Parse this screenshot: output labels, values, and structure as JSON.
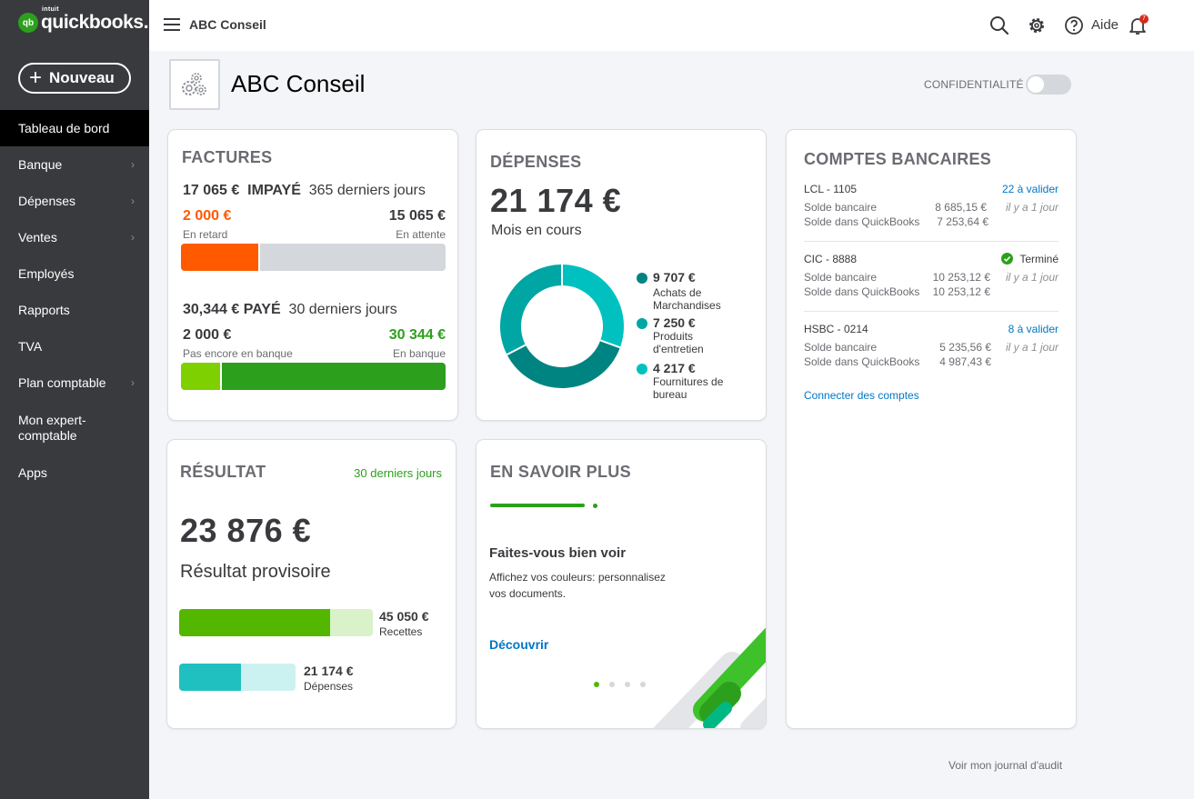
{
  "app": {
    "brand_badge": "qb",
    "brand_top": "intuit",
    "brand_name": "quickbooks."
  },
  "sidebar": {
    "new_button": "Nouveau",
    "items": [
      {
        "label": "Tableau de bord",
        "active": true
      },
      {
        "label": "Banque",
        "has_submenu": true
      },
      {
        "label": "Dépenses",
        "has_submenu": true
      },
      {
        "label": "Ventes",
        "has_submenu": true
      },
      {
        "label": "Employés"
      },
      {
        "label": "Rapports"
      },
      {
        "label": "TVA"
      },
      {
        "label": "Plan comptable",
        "has_submenu": true
      },
      {
        "label": "Mon expert-comptable"
      },
      {
        "label": "Apps"
      }
    ]
  },
  "topbar": {
    "company": "ABC Conseil",
    "help_label": "Aide",
    "notifications_count": "7"
  },
  "header": {
    "company_name": "ABC Conseil",
    "privacy_label": "CONFIDENTIALITÉ",
    "privacy_on": false
  },
  "factures": {
    "title": "FACTURES",
    "unpaid_amount": "17 065 €",
    "unpaid_label": "IMPAYÉ",
    "unpaid_period": "365 derniers jours",
    "overdue_amount": "2 000 €",
    "overdue_label": "En retard",
    "pending_amount": "15 065 €",
    "pending_label": "En attente",
    "paid_amount": "30,344 €",
    "paid_label": "PAYÉ",
    "paid_period": "30 derniers jours",
    "not_deposited_amount": "2 000 €",
    "not_deposited_label": "Pas encore en banque",
    "deposited_amount": "30 344 €",
    "deposited_label": "En banque"
  },
  "depenses": {
    "title": "DÉPENSES",
    "total": "21 174 €",
    "period": "Mois en cours",
    "legend": [
      {
        "value": "9 707 €",
        "label_lines": [
          "Achats de",
          "Marchandises"
        ],
        "color": "#008481"
      },
      {
        "value": "7 250 €",
        "label_lines": [
          "Produits",
          "d'entretien"
        ],
        "color": "#00a6a4"
      },
      {
        "value": "4 217 €",
        "label_lines": [
          "Fournitures de",
          "bureau"
        ],
        "color": "#00c1bf"
      }
    ]
  },
  "comptes": {
    "title": "COMPTES BANCAIRES",
    "accounts": [
      {
        "name": "LCL - 1105",
        "status": "22 à valider",
        "bank_label": "Solde bancaire",
        "bank_value": "8 685,15 €",
        "qb_label": "Solde dans QuickBooks",
        "qb_value": "7 253,64 €",
        "ago": "il y a 1 jour"
      },
      {
        "name": "CIC - 8888",
        "status": "Terminé",
        "bank_label": "Solde bancaire",
        "bank_value": "10 253,12 €",
        "qb_label": "Solde dans QuickBooks",
        "qb_value": "10 253,12 €",
        "ago": "il y a 1 jour"
      },
      {
        "name": "HSBC - 0214",
        "status": "8 à valider",
        "bank_label": "Solde bancaire",
        "bank_value": "5 235,56 €",
        "qb_label": "Solde dans QuickBooks",
        "qb_value": "4 987,43 €",
        "ago": "il y a 1 jour"
      }
    ],
    "connect_link": "Connecter des comptes"
  },
  "resultat": {
    "title": "RÉSULTAT",
    "period": "30 derniers jours",
    "amount": "23 876 €",
    "label": "Résultat provisoire",
    "income_value": "45 050 €",
    "income_label": "Recettes",
    "expense_value": "21 174 €",
    "expense_label": "Dépenses"
  },
  "en_savoir_plus": {
    "title": "EN SAVOIR PLUS",
    "heading": "Faites-vous bien voir",
    "body_lines": [
      "Affichez vos couleurs: personnalisez",
      "vos documents."
    ],
    "cta": "Découvrir",
    "slides_total": 4,
    "current_slide": 1
  },
  "footer": {
    "audit_link": "Voir mon journal d'audit"
  },
  "colors": {
    "brand_green": "#2ca01c",
    "overdue_orange": "#ff5a00",
    "pending_gray": "#d4d7dc",
    "deposited_green": "#2ca01c",
    "not_deposited_green": "#7fd000",
    "income_green": "#53b700",
    "expense_teal": "#21c0c0",
    "link_blue": "#0077c5"
  }
}
